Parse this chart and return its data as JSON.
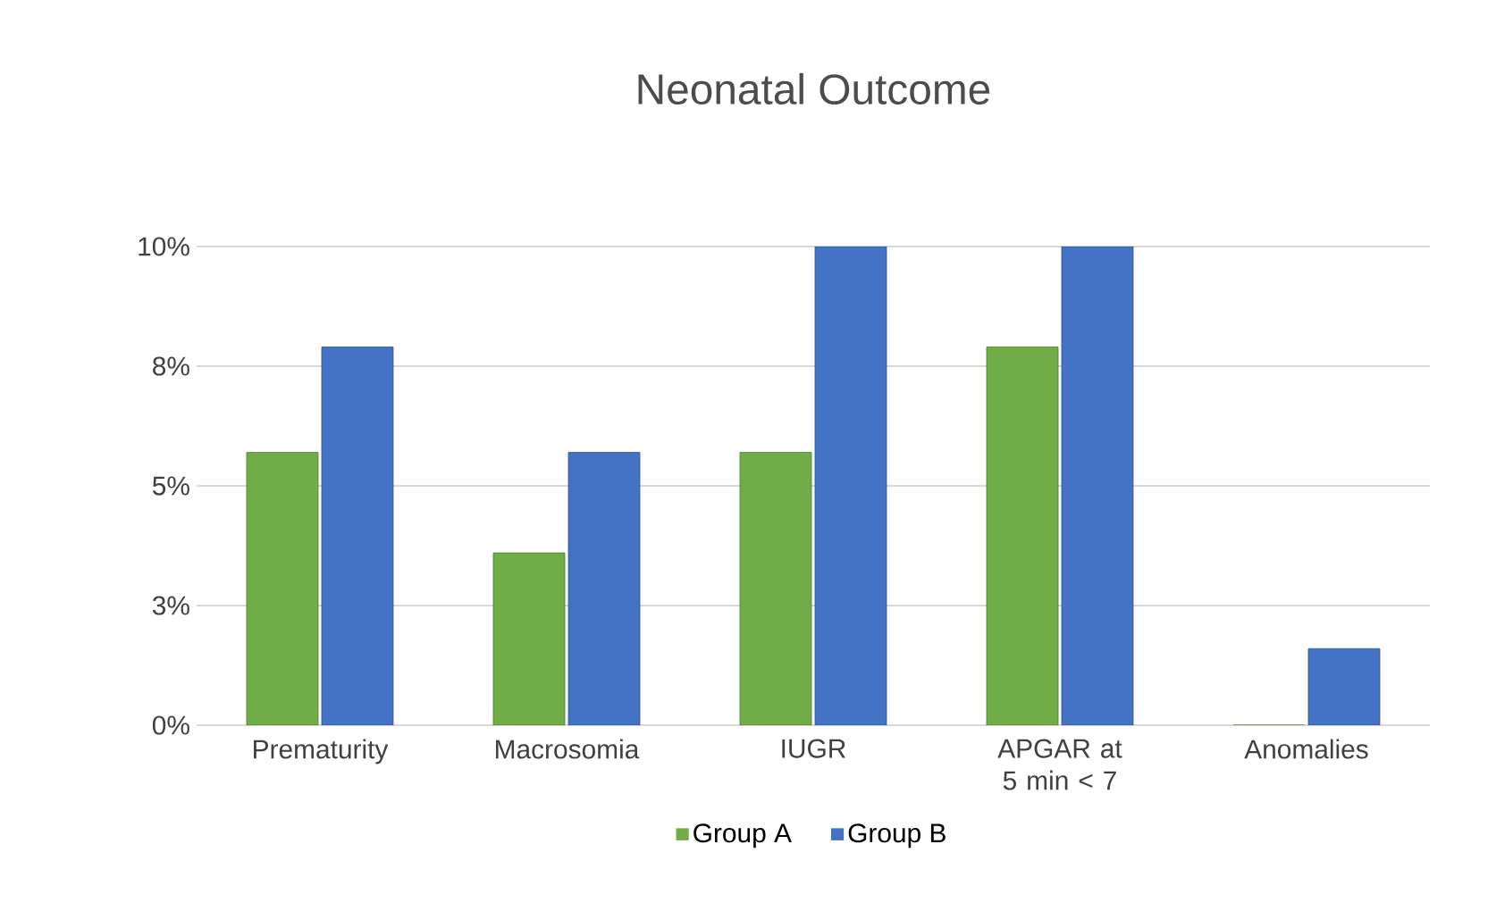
{
  "chart_data": {
    "type": "bar",
    "title": "Neonatal Outcome",
    "categories": [
      "Prematurity",
      "Macrosomia",
      "IUGR",
      "APGAR at 5 min < 7",
      "Anomalies"
    ],
    "series": [
      {
        "name": "Group A",
        "color": "#70ad47",
        "values": [
          5.7,
          3.6,
          5.7,
          7.9,
          0
        ]
      },
      {
        "name": "Group B",
        "color": "#4472c4",
        "values": [
          7.9,
          5.7,
          10,
          10,
          1.6
        ]
      }
    ],
    "ylim": [
      0,
      10
    ],
    "yticks": [
      {
        "value": 0,
        "label": "0%"
      },
      {
        "value": 2.5,
        "label": "3%"
      },
      {
        "value": 5,
        "label": "5%"
      },
      {
        "value": 7.5,
        "label": "8%"
      },
      {
        "value": 10,
        "label": "10%"
      }
    ],
    "grid": "y",
    "legend": "bottom"
  }
}
